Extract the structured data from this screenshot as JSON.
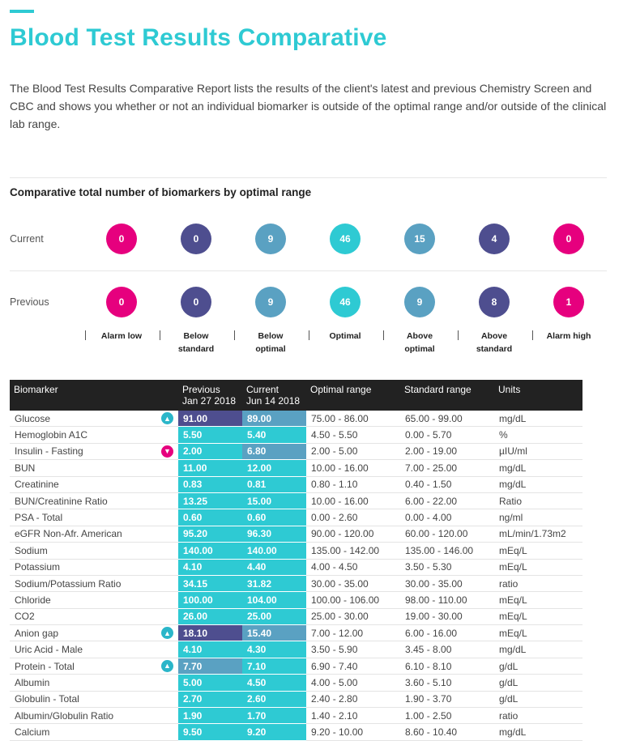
{
  "report": {
    "title": "Blood Test Results Comparative",
    "intro": "The Blood Test Results Comparative Report lists the results of the client's latest and previous Chemistry Screen and CBC and shows you whether or not an individual biomarker is outside of the optimal range and/or outside of the clinical lab range."
  },
  "summary": {
    "title": "Comparative total number of biomarkers by optimal range",
    "rows": [
      {
        "label": "Current",
        "values": [
          "0",
          "0",
          "9",
          "46",
          "15",
          "4",
          "0"
        ]
      },
      {
        "label": "Previous",
        "values": [
          "0",
          "0",
          "9",
          "46",
          "9",
          "8",
          "1"
        ]
      }
    ],
    "categories": [
      {
        "line1": "Alarm low",
        "line2": ""
      },
      {
        "line1": "Below",
        "line2": "standard"
      },
      {
        "line1": "Below",
        "line2": "optimal"
      },
      {
        "line1": "Optimal",
        "line2": ""
      },
      {
        "line1": "Above",
        "line2": "optimal"
      },
      {
        "line1": "Above",
        "line2": "standard"
      },
      {
        "line1": "Alarm high",
        "line2": ""
      }
    ],
    "colors": [
      "#e6007e",
      "#4e4e8f",
      "#5aa1c2",
      "#2ecad3",
      "#5aa1c2",
      "#4e4e8f",
      "#e6007e"
    ]
  },
  "table": {
    "headers": {
      "biomarker": "Biomarker",
      "previous": "Previous",
      "previous_date": "Jan 27 2018",
      "current": "Current",
      "current_date": "Jun 14 2018",
      "optimal": "Optimal range",
      "standard": "Standard range",
      "units": "Units"
    },
    "rows": [
      {
        "name": "Glucose",
        "icon": "thumbs-up-icon",
        "prev": "91.00",
        "prevClass": "v-above-std",
        "cur": "89.00",
        "curClass": "v-above-opt",
        "optimal": "75.00 - 86.00",
        "standard": "65.00 - 99.00",
        "units": "mg/dL"
      },
      {
        "name": "Hemoglobin A1C",
        "icon": "",
        "prev": "5.50",
        "prevClass": "v-optimal",
        "cur": "5.40",
        "curClass": "v-optimal",
        "optimal": "4.50 - 5.50",
        "standard": "0.00 - 5.70",
        "units": "%"
      },
      {
        "name": "Insulin - Fasting",
        "icon": "thumbs-down-icon",
        "prev": "2.00",
        "prevClass": "v-optimal",
        "cur": "6.80",
        "curClass": "v-above-opt",
        "optimal": "2.00 - 5.00",
        "standard": "2.00 - 19.00",
        "units": "µIU/ml"
      },
      {
        "name": "BUN",
        "icon": "",
        "prev": "11.00",
        "prevClass": "v-optimal",
        "cur": "12.00",
        "curClass": "v-optimal",
        "optimal": "10.00 - 16.00",
        "standard": "7.00 - 25.00",
        "units": "mg/dL"
      },
      {
        "name": "Creatinine",
        "icon": "",
        "prev": "0.83",
        "prevClass": "v-optimal",
        "cur": "0.81",
        "curClass": "v-optimal",
        "optimal": "0.80 - 1.10",
        "standard": "0.40 - 1.50",
        "units": "mg/dL"
      },
      {
        "name": "BUN/Creatinine Ratio",
        "icon": "",
        "prev": "13.25",
        "prevClass": "v-optimal",
        "cur": "15.00",
        "curClass": "v-optimal",
        "optimal": "10.00 - 16.00",
        "standard": "6.00 - 22.00",
        "units": "Ratio"
      },
      {
        "name": "PSA - Total",
        "icon": "",
        "prev": "0.60",
        "prevClass": "v-optimal",
        "cur": "0.60",
        "curClass": "v-optimal",
        "optimal": "0.00 - 2.60",
        "standard": "0.00 - 4.00",
        "units": "ng/ml"
      },
      {
        "name": "eGFR Non-Afr. American",
        "icon": "",
        "prev": "95.20",
        "prevClass": "v-optimal",
        "cur": "96.30",
        "curClass": "v-optimal",
        "optimal": "90.00 - 120.00",
        "standard": "60.00 - 120.00",
        "units": "mL/min/1.73m2"
      },
      {
        "name": "Sodium",
        "icon": "",
        "prev": "140.00",
        "prevClass": "v-optimal",
        "cur": "140.00",
        "curClass": "v-optimal",
        "optimal": "135.00 - 142.00",
        "standard": "135.00 - 146.00",
        "units": "mEq/L"
      },
      {
        "name": "Potassium",
        "icon": "",
        "prev": "4.10",
        "prevClass": "v-optimal",
        "cur": "4.40",
        "curClass": "v-optimal",
        "optimal": "4.00 - 4.50",
        "standard": "3.50 - 5.30",
        "units": "mEq/L"
      },
      {
        "name": "Sodium/Potassium Ratio",
        "icon": "",
        "prev": "34.15",
        "prevClass": "v-optimal",
        "cur": "31.82",
        "curClass": "v-optimal",
        "optimal": "30.00 - 35.00",
        "standard": "30.00 - 35.00",
        "units": "ratio"
      },
      {
        "name": "Chloride",
        "icon": "",
        "prev": "100.00",
        "prevClass": "v-optimal",
        "cur": "104.00",
        "curClass": "v-optimal",
        "optimal": "100.00 - 106.00",
        "standard": "98.00 - 110.00",
        "units": "mEq/L"
      },
      {
        "name": "CO2",
        "icon": "",
        "prev": "26.00",
        "prevClass": "v-optimal",
        "cur": "25.00",
        "curClass": "v-optimal",
        "optimal": "25.00 - 30.00",
        "standard": "19.00 - 30.00",
        "units": "mEq/L"
      },
      {
        "name": "Anion gap",
        "icon": "thumbs-up-icon",
        "prev": "18.10",
        "prevClass": "v-above-std",
        "cur": "15.40",
        "curClass": "v-above-opt",
        "optimal": "7.00 - 12.00",
        "standard": "6.00 - 16.00",
        "units": "mEq/L"
      },
      {
        "name": "Uric Acid - Male",
        "icon": "",
        "prev": "4.10",
        "prevClass": "v-optimal",
        "cur": "4.30",
        "curClass": "v-optimal",
        "optimal": "3.50 - 5.90",
        "standard": "3.45 - 8.00",
        "units": "mg/dL"
      },
      {
        "name": "Protein - Total",
        "icon": "thumbs-up-icon",
        "prev": "7.70",
        "prevClass": "v-above-opt",
        "cur": "7.10",
        "curClass": "v-optimal",
        "optimal": "6.90 - 7.40",
        "standard": "6.10 - 8.10",
        "units": "g/dL"
      },
      {
        "name": "Albumin",
        "icon": "",
        "prev": "5.00",
        "prevClass": "v-optimal",
        "cur": "4.50",
        "curClass": "v-optimal",
        "optimal": "4.00 - 5.00",
        "standard": "3.60 - 5.10",
        "units": "g/dL"
      },
      {
        "name": "Globulin - Total",
        "icon": "",
        "prev": "2.70",
        "prevClass": "v-optimal",
        "cur": "2.60",
        "curClass": "v-optimal",
        "optimal": "2.40 - 2.80",
        "standard": "1.90 - 3.70",
        "units": "g/dL"
      },
      {
        "name": "Albumin/Globulin Ratio",
        "icon": "",
        "prev": "1.90",
        "prevClass": "v-optimal",
        "cur": "1.70",
        "curClass": "v-optimal",
        "optimal": "1.40 - 2.10",
        "standard": "1.00 - 2.50",
        "units": "ratio"
      },
      {
        "name": "Calcium",
        "icon": "",
        "prev": "9.50",
        "prevClass": "v-optimal",
        "cur": "9.20",
        "curClass": "v-optimal",
        "optimal": "9.20 - 10.00",
        "standard": "8.60 - 10.40",
        "units": "mg/dL"
      }
    ]
  }
}
